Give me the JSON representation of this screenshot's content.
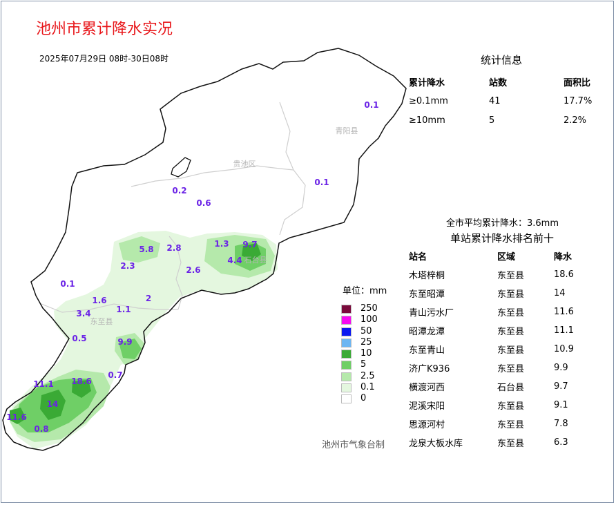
{
  "title": "池州市累计降水实况",
  "date_range": "2025年07月29日 08时-30日08时",
  "stats": {
    "title": "统计信息",
    "headers": [
      "累计降水",
      "站数",
      "面积比"
    ],
    "rows": [
      [
        "≥0.1mm",
        "41",
        "17.7%"
      ],
      [
        "≥10mm",
        "5",
        "2.2%"
      ]
    ]
  },
  "average": "全市平均累计降水：3.6mm",
  "ranking": {
    "title": "单站累计降水排名前十",
    "headers": [
      "站名",
      "区域",
      "降水"
    ],
    "rows": [
      [
        "木塔梓桐",
        "东至县",
        "18.6"
      ],
      [
        "东至昭潭",
        "东至县",
        "14"
      ],
      [
        "青山污水厂",
        "东至县",
        "11.6"
      ],
      [
        "昭潭龙潭",
        "东至县",
        "11.1"
      ],
      [
        "东至青山",
        "东至县",
        "10.9"
      ],
      [
        "济广K936",
        "东至县",
        "9.9"
      ],
      [
        "横渡河西",
        "石台县",
        "9.7"
      ],
      [
        "泥溪宋阳",
        "东至县",
        "9.1"
      ],
      [
        "思源河村",
        "东至县",
        "7.8"
      ],
      [
        "龙泉大板水库",
        "东至县",
        "6.3"
      ]
    ]
  },
  "legend": {
    "unit": "单位：mm",
    "items": [
      {
        "label": "250",
        "color": "#7a0b3c"
      },
      {
        "label": "100",
        "color": "#f70cf0"
      },
      {
        "label": "50",
        "color": "#0b18f0"
      },
      {
        "label": "25",
        "color": "#6db6f2"
      },
      {
        "label": "10",
        "color": "#3aaa35"
      },
      {
        "label": "5",
        "color": "#6fcf66"
      },
      {
        "label": "2.5",
        "color": "#b5e9ab"
      },
      {
        "label": "0.1",
        "color": "#e4f7df"
      },
      {
        "label": "0",
        "color": "#ffffff"
      }
    ]
  },
  "credit": "池州市气象台制",
  "districts": {
    "guichi": "贵池区",
    "qingyang": "青阳县",
    "dongzhi": "东至县",
    "shitai": "石台县"
  },
  "station_values": [
    "0.1",
    "0.2",
    "0.6",
    "0.1",
    "5.8",
    "2.8",
    "1.3",
    "9.7",
    "2.3",
    "2.6",
    "4.4",
    "0.1",
    "1.6",
    "2",
    "3.4",
    "1.1",
    "0.5",
    "9.9",
    "11.1",
    "18.6",
    "0.7",
    "14",
    "11.6",
    "0.8"
  ]
}
